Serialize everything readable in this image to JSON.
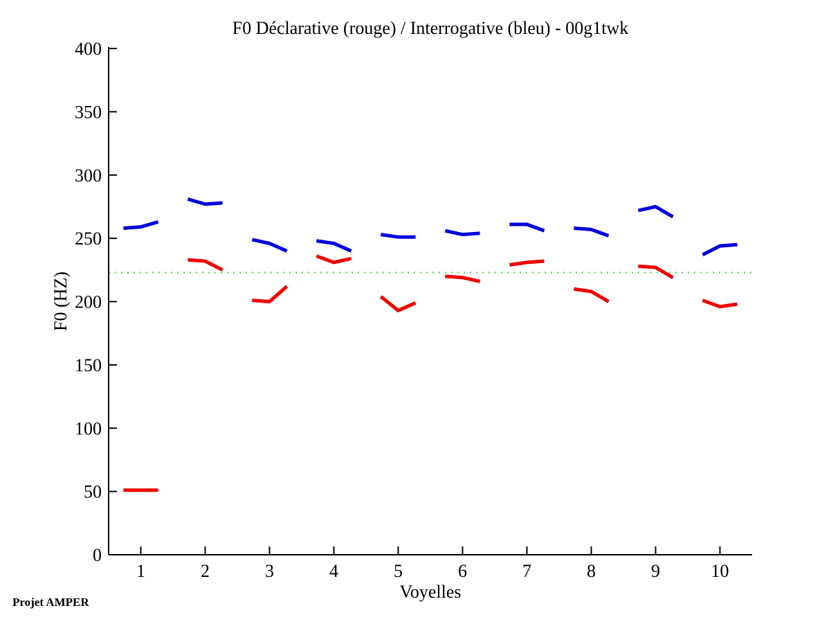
{
  "title": "F0 Déclarative (rouge) / Interrogative (bleu) - 00g1twk",
  "footer": "Projet AMPER",
  "colors": {
    "declarative": "#ee0000",
    "interrogative": "#0000dd",
    "reference_line": "#44cc44",
    "axis": "#000000",
    "background": "#ffffff"
  },
  "chart_data": {
    "type": "line",
    "title": "F0 Déclarative (rouge) / Interrogative (bleu) - 00g1twk",
    "xlabel": "Voyelles",
    "ylabel": "F0 (HZ)",
    "xlim": [
      0.5,
      10.5
    ],
    "ylim": [
      0,
      400
    ],
    "xticks": [
      1,
      2,
      3,
      4,
      5,
      6,
      7,
      8,
      9,
      10
    ],
    "yticks": [
      0,
      50,
      100,
      150,
      200,
      250,
      300,
      350,
      400
    ],
    "grid": false,
    "legend_position": "none (encoded in title)",
    "point_offsets": [
      -0.27,
      0,
      0.27
    ],
    "series": [
      {
        "name": "declarative",
        "label": "Déclarative (rouge)",
        "color": "#ee0000",
        "segments": [
          [
            51,
            51,
            51
          ],
          [
            233,
            232,
            225
          ],
          [
            201,
            200,
            212
          ],
          [
            236,
            231,
            234
          ],
          [
            204,
            193,
            199
          ],
          [
            220,
            219,
            216
          ],
          [
            229,
            231,
            232
          ],
          [
            210,
            208,
            200
          ],
          [
            228,
            227,
            219
          ],
          [
            201,
            196,
            198
          ]
        ]
      },
      {
        "name": "interrogative",
        "label": "Interrogative (bleu)",
        "color": "#0000dd",
        "segments": [
          [
            258,
            259,
            263
          ],
          [
            281,
            277,
            278
          ],
          [
            249,
            246,
            240
          ],
          [
            248,
            246,
            240
          ],
          [
            253,
            251,
            251
          ],
          [
            256,
            253,
            254
          ],
          [
            261,
            261,
            256
          ],
          [
            258,
            257,
            252
          ],
          [
            272,
            275,
            267
          ],
          [
            237,
            244,
            245
          ]
        ]
      }
    ],
    "reference_line": {
      "value": 223,
      "color": "#44cc44",
      "style": "dotted"
    }
  }
}
